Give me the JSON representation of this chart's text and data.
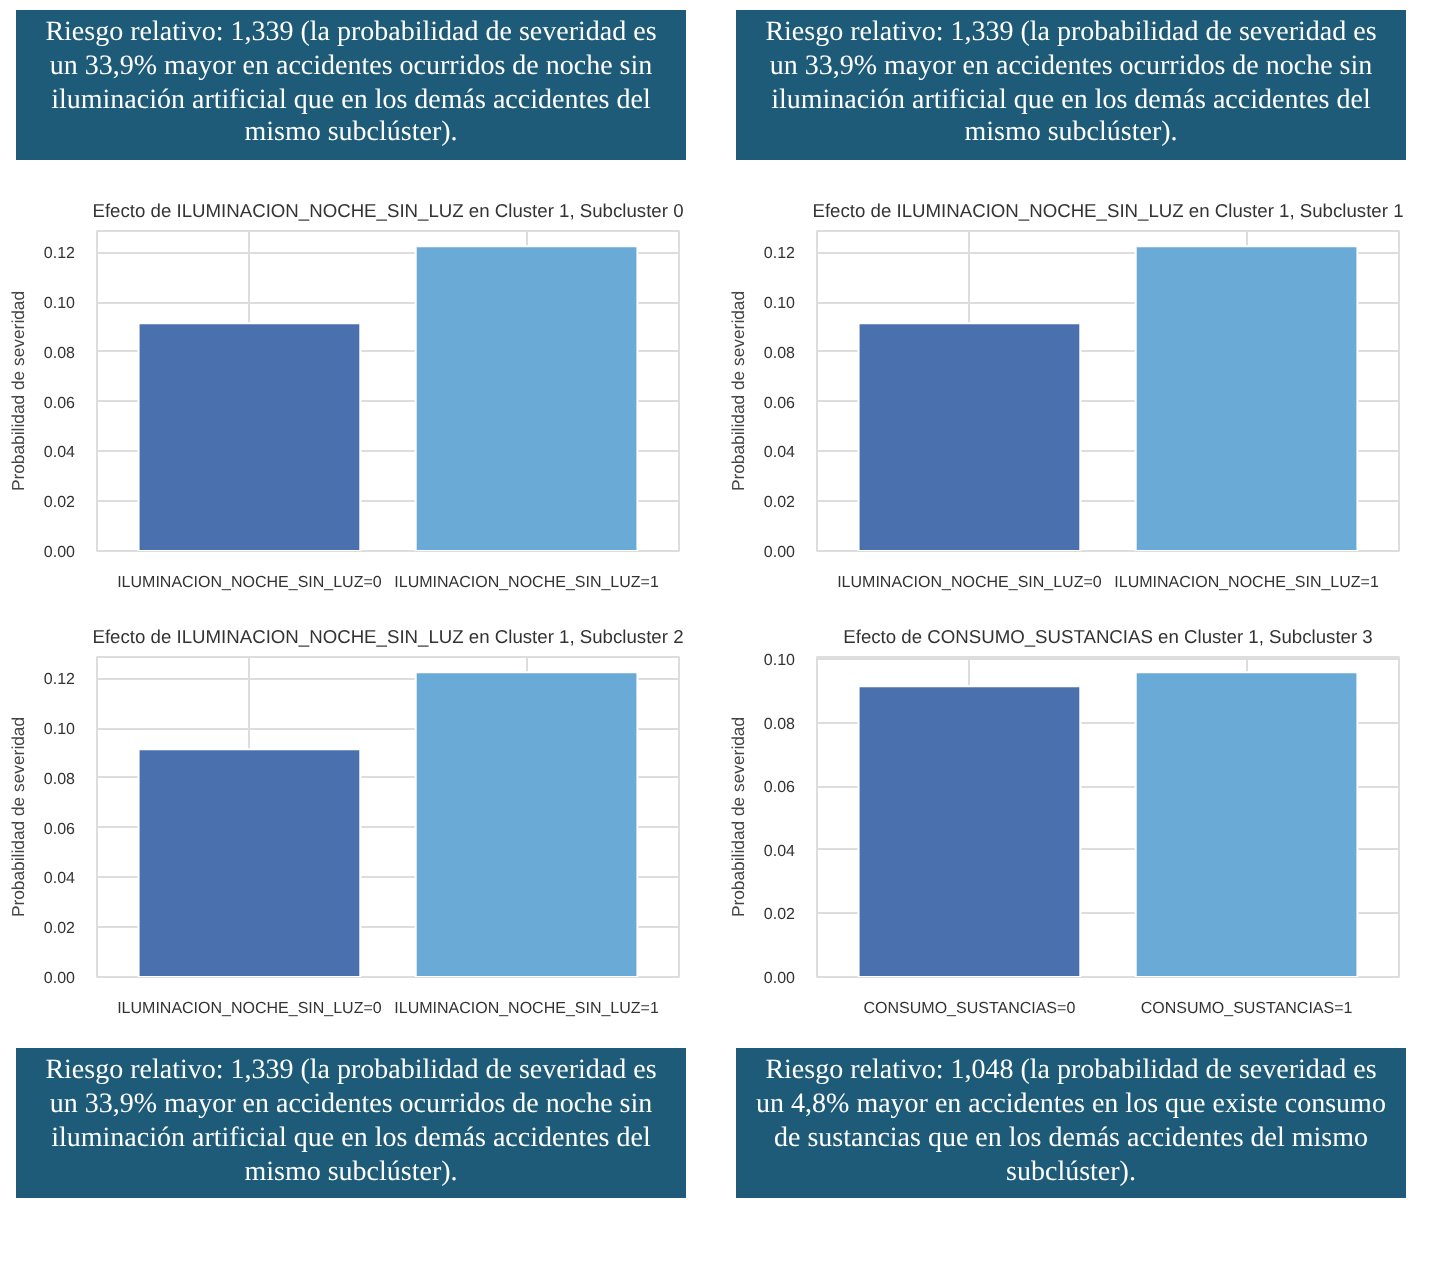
{
  "chart_data": [
    {
      "type": "bar",
      "title": "Efecto de ILUMINACION_NOCHE_SIN_LUZ en Cluster 1, Subcluster 0",
      "ylabel": "Probabilidad de severidad",
      "categories": [
        "ILUMINACION_NOCHE_SIN_LUZ=0",
        "ILUMINACION_NOCHE_SIN_LUZ=1"
      ],
      "values": [
        0.0915,
        0.1225
      ],
      "colors": [
        "#4a70ae",
        "#69aad6"
      ],
      "ylim": [
        0,
        0.1286
      ],
      "yticks": [
        {
          "value": 0,
          "label": "0.00"
        },
        {
          "value": 0.02,
          "label": "0.02"
        },
        {
          "value": 0.04,
          "label": "0.04"
        },
        {
          "value": 0.06,
          "label": "0.06"
        },
        {
          "value": 0.08,
          "label": "0.08"
        },
        {
          "value": 0.1,
          "label": "0.10"
        },
        {
          "value": 0.12,
          "label": "0.12"
        }
      ],
      "grid": true,
      "annotations": [
        "Riesgo relativo: 1,339 (la probabilidad de severidad es un 33,9% mayor en accidentes ocurridos de noche sin iluminación artificial que en los demás accidentes del mismo subclúster)."
      ]
    },
    {
      "type": "bar",
      "title": "Efecto de ILUMINACION_NOCHE_SIN_LUZ en Cluster 1, Subcluster 1",
      "ylabel": "Probabilidad de severidad",
      "categories": [
        "ILUMINACION_NOCHE_SIN_LUZ=0",
        "ILUMINACION_NOCHE_SIN_LUZ=1"
      ],
      "values": [
        0.0915,
        0.1225
      ],
      "colors": [
        "#4a70ae",
        "#69aad6"
      ],
      "ylim": [
        0,
        0.1286
      ],
      "yticks": [
        {
          "value": 0,
          "label": "0.00"
        },
        {
          "value": 0.02,
          "label": "0.02"
        },
        {
          "value": 0.04,
          "label": "0.04"
        },
        {
          "value": 0.06,
          "label": "0.06"
        },
        {
          "value": 0.08,
          "label": "0.08"
        },
        {
          "value": 0.1,
          "label": "0.10"
        },
        {
          "value": 0.12,
          "label": "0.12"
        }
      ],
      "grid": true,
      "annotations": [
        "Riesgo relativo: 1,339 (la probabilidad de severidad es un 33,9% mayor en accidentes ocurridos de noche sin iluminación artificial que en los demás accidentes del mismo subclúster)."
      ]
    },
    {
      "type": "bar",
      "title": "Efecto de ILUMINACION_NOCHE_SIN_LUZ en Cluster 1, Subcluster 2",
      "ylabel": "Probabilidad de severidad",
      "categories": [
        "ILUMINACION_NOCHE_SIN_LUZ=0",
        "ILUMINACION_NOCHE_SIN_LUZ=1"
      ],
      "values": [
        0.0915,
        0.1225
      ],
      "colors": [
        "#4a70ae",
        "#69aad6"
      ],
      "ylim": [
        0,
        0.1286
      ],
      "yticks": [
        {
          "value": 0,
          "label": "0.00"
        },
        {
          "value": 0.02,
          "label": "0.02"
        },
        {
          "value": 0.04,
          "label": "0.04"
        },
        {
          "value": 0.06,
          "label": "0.06"
        },
        {
          "value": 0.08,
          "label": "0.08"
        },
        {
          "value": 0.1,
          "label": "0.10"
        },
        {
          "value": 0.12,
          "label": "0.12"
        }
      ],
      "grid": true,
      "annotations": [
        "Riesgo relativo: 1,339 (la probabilidad de severidad es un 33,9% mayor en accidentes ocurridos de noche sin iluminación artificial que en los demás accidentes del mismo subclúster)."
      ]
    },
    {
      "type": "bar",
      "title": "Efecto de CONSUMO_SUSTANCIAS en Cluster 1, Subcluster 3",
      "ylabel": "Probabilidad de severidad",
      "categories": [
        "CONSUMO_SUSTANCIAS=0",
        "CONSUMO_SUSTANCIAS=1"
      ],
      "values": [
        0.0915,
        0.0959
      ],
      "colors": [
        "#4a70ae",
        "#69aad6"
      ],
      "ylim": [
        0,
        0.1007
      ],
      "yticks": [
        {
          "value": 0,
          "label": "0.00"
        },
        {
          "value": 0.02,
          "label": "0.02"
        },
        {
          "value": 0.04,
          "label": "0.04"
        },
        {
          "value": 0.06,
          "label": "0.06"
        },
        {
          "value": 0.08,
          "label": "0.08"
        },
        {
          "value": 0.1,
          "label": "0.10"
        }
      ],
      "grid": true,
      "annotations": [
        "Riesgo relativo: 1,048 (la probabilidad de severidad es un 4,8% mayor en accidentes en los que existe consumo de sustancias que en los demás accidentes del mismo subclúster)."
      ]
    }
  ]
}
